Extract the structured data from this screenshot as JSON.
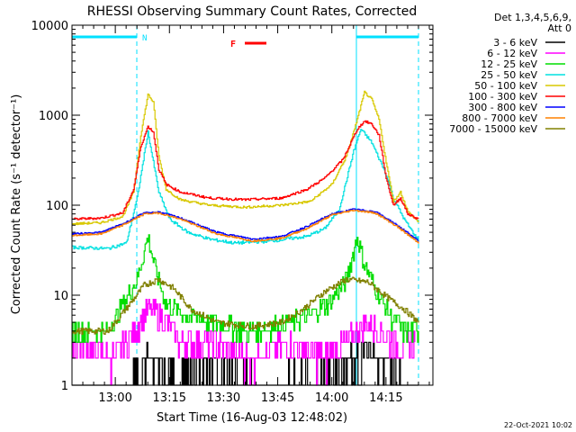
{
  "chart_data": {
    "type": "line",
    "title": "RHESSI Observing Summary Count Rates, Corrected",
    "xlabel": "Start Time (16-Aug-03 12:48:02)",
    "ylabel": "Corrected Count Rate (s⁻¹ detector⁻¹)",
    "y_scale": "log",
    "ylim": [
      1,
      10000
    ],
    "y_ticks": [
      "1",
      "10",
      "100",
      "1000",
      "10000"
    ],
    "x_ticks": [
      "13:00",
      "13:15",
      "13:30",
      "13:45",
      "14:00",
      "14:15"
    ],
    "x_tick_minutes": [
      12,
      27,
      42,
      57,
      72,
      87
    ],
    "x_range_minutes": [
      0,
      100
    ],
    "legend_header": [
      "Det 1,3,4,5,6,9,",
      "Att 0"
    ],
    "legend_position": "right",
    "annotations": {
      "night_label": "N",
      "flare_label": "F"
    },
    "footer_date": "22-Oct-2021 10:02",
    "series": [
      {
        "name": "3 - 6 keV",
        "color": "#000000",
        "t": [
          0,
          12,
          20,
          30,
          40,
          55,
          70,
          75,
          80,
          85,
          90,
          92,
          96
        ],
        "values": [
          1,
          1,
          2,
          1.5,
          2,
          1,
          1.5,
          2,
          3,
          2,
          1.5,
          1,
          1
        ]
      },
      {
        "name": "6 - 12 keV",
        "color": "#ff00ff",
        "t": [
          0,
          12,
          15,
          21,
          25,
          30,
          40,
          50,
          60,
          70,
          75,
          82,
          90,
          95
        ],
        "values": [
          3,
          2,
          3,
          7,
          6,
          3,
          3,
          2,
          3,
          2,
          3,
          5,
          3,
          3
        ]
      },
      {
        "name": "12 - 25 keV",
        "color": "#00dd00",
        "t": [
          0,
          10,
          14,
          18,
          21,
          23,
          26,
          32,
          40,
          50,
          60,
          66,
          72,
          76,
          79,
          81,
          84,
          88,
          92,
          96
        ],
        "values": [
          4,
          4,
          8,
          15,
          45,
          20,
          8,
          6,
          5,
          4,
          5,
          6,
          9,
          15,
          45,
          22,
          12,
          6,
          4,
          4
        ]
      },
      {
        "name": "25 - 50 keV",
        "color": "#00e0e0",
        "t": [
          0,
          10,
          15,
          18,
          21,
          24,
          27,
          32,
          38,
          45,
          55,
          65,
          70,
          74,
          78,
          80,
          83,
          87,
          89,
          92,
          96
        ],
        "values": [
          34,
          33,
          38,
          120,
          650,
          140,
          70,
          50,
          42,
          38,
          40,
          45,
          55,
          90,
          400,
          700,
          500,
          220,
          120,
          70,
          40
        ]
      },
      {
        "name": "50 - 100 keV",
        "color": "#d8c800",
        "t": [
          0,
          8,
          14,
          17,
          19,
          21,
          22.5,
          24,
          26,
          30,
          38,
          48,
          58,
          66,
          72,
          76,
          79,
          81,
          83,
          85,
          87,
          89,
          91,
          93,
          96
        ],
        "values": [
          62,
          64,
          75,
          140,
          600,
          1700,
          1400,
          350,
          150,
          115,
          100,
          95,
          100,
          110,
          170,
          350,
          900,
          1800,
          1500,
          900,
          300,
          110,
          140,
          85,
          65
        ]
      },
      {
        "name": "100 - 300 keV",
        "color": "#ff0000",
        "t": [
          0,
          8,
          14,
          17,
          19,
          21,
          22.5,
          24,
          26,
          30,
          38,
          48,
          58,
          65,
          70,
          75,
          79,
          81,
          83,
          85,
          87,
          89,
          91,
          93,
          96
        ],
        "values": [
          70,
          72,
          82,
          150,
          450,
          750,
          650,
          250,
          170,
          140,
          120,
          115,
          120,
          150,
          200,
          320,
          700,
          860,
          800,
          600,
          200,
          100,
          120,
          80,
          70
        ]
      },
      {
        "name": "300 - 800 keV",
        "color": "#0000ff",
        "t": [
          0,
          8,
          14,
          20,
          24,
          30,
          40,
          50,
          58,
          65,
          72,
          78,
          84,
          90,
          96
        ],
        "values": [
          48,
          50,
          62,
          82,
          84,
          72,
          50,
          42,
          45,
          58,
          80,
          90,
          85,
          60,
          40
        ]
      },
      {
        "name": "800 - 7000 keV",
        "color": "#ff8000",
        "t": [
          0,
          8,
          14,
          20,
          24,
          30,
          40,
          50,
          58,
          65,
          72,
          78,
          84,
          90,
          96
        ],
        "values": [
          46,
          48,
          60,
          80,
          82,
          70,
          48,
          40,
          43,
          55,
          78,
          88,
          82,
          58,
          38
        ]
      },
      {
        "name": "7000 - 15000 keV",
        "color": "#808000",
        "t": [
          0,
          10,
          16,
          20,
          24,
          28,
          33,
          40,
          50,
          58,
          64,
          70,
          76,
          82,
          88,
          92,
          96
        ],
        "values": [
          4,
          4,
          8,
          13,
          15,
          12,
          7,
          5,
          4.5,
          5,
          7,
          11,
          15,
          14,
          9,
          7,
          5
        ]
      }
    ]
  }
}
